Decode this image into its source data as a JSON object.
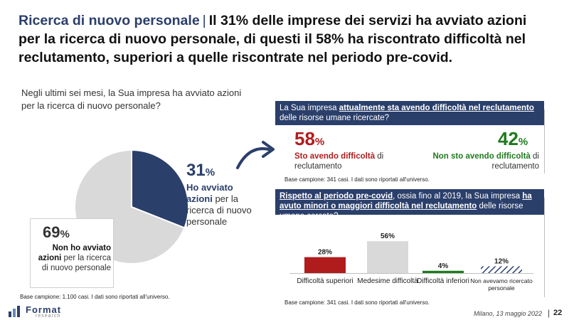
{
  "title": {
    "brand": "Ricerca di nuovo personale",
    "separator": "|",
    "text": "Il 31% delle imprese dei servizi ha avviato azioni per la ricerca di nuovo personale, di questi il 58% ha riscontrato difficoltà nel reclutamento, superiori a quelle riscontrate nel periodo pre-covid."
  },
  "left": {
    "question": "Negli ultimi sei mesi, la Sua impresa ha avviato azioni per la ricerca di nuovo personale?",
    "yes_pct": "31",
    "yes_unit": "%",
    "yes_label_bold": "Ho avviato azioni",
    "yes_label_rest": " per la ricerca di nuovo personale",
    "no_pct": "69",
    "no_unit": "%",
    "no_label_bold": "Non ho avviato azioni",
    "no_label_rest": " per la ricerca di nuovo personale",
    "base": "Base campione: 1.100 casi. I dati sono riportati all'universo."
  },
  "top_right": {
    "header_pre": "La Sua impresa ",
    "header_underlined": "attualmente sta avendo difficoltà nel reclutamento",
    "header_post": " delle risorse umane ricercate?",
    "yes_pct": "58",
    "yes_unit": "%",
    "yes_label_bold": "Sto avendo difficoltà",
    "yes_label_rest": " di reclutamento",
    "no_pct": "42",
    "no_unit": "%",
    "no_label_bold": "Non sto avendo difficoltà",
    "no_label_rest": " di reclutamento",
    "base": "Base campione: 341 casi. I dati sono riportati all'universo."
  },
  "bottom_right": {
    "header_underlined_1": "Rispetto al periodo pre-covid",
    "header_mid": ", ossia fino al 2019, la Sua impresa ",
    "header_underlined_2": "ha avuto minori o maggiori difficoltà nel reclutamento",
    "header_post": " delle risorse umane cercate?",
    "base": "Base campione: 341 casi. I dati sono riportati all'universo."
  },
  "chart_data": [
    {
      "type": "pie",
      "categories": [
        "Ho avviato azioni per la ricerca di nuovo personale",
        "Non ho avviato azioni per la ricerca di nuovo personale"
      ],
      "values": [
        31,
        69
      ],
      "colors": [
        "#2b3f6b",
        "#d9d9d9"
      ]
    },
    {
      "type": "bar",
      "categories": [
        "Difficoltà superiori",
        "Medesime difficoltà",
        "Difficoltà inferiori",
        "Non avevamo ricercato personale"
      ],
      "values": [
        28,
        56,
        4,
        12
      ],
      "value_labels": [
        "28%",
        "56%",
        "4%",
        "12%"
      ],
      "colors": [
        "#b01c1c",
        "#d9d9d9",
        "#1f7a1f",
        "#2b3f6b"
      ],
      "patterns": [
        "solid",
        "solid",
        "solid",
        "hatched"
      ],
      "ylim": [
        0,
        60
      ]
    }
  ],
  "footer": {
    "logo": "Format",
    "logo_sub": "research",
    "date": "Milano, 13 maggio 2022",
    "separator": "|",
    "page": "22"
  },
  "colors": {
    "navy": "#2b3f6b",
    "red": "#b01c1c",
    "green": "#1f7a1f",
    "grey": "#d9d9d9"
  }
}
